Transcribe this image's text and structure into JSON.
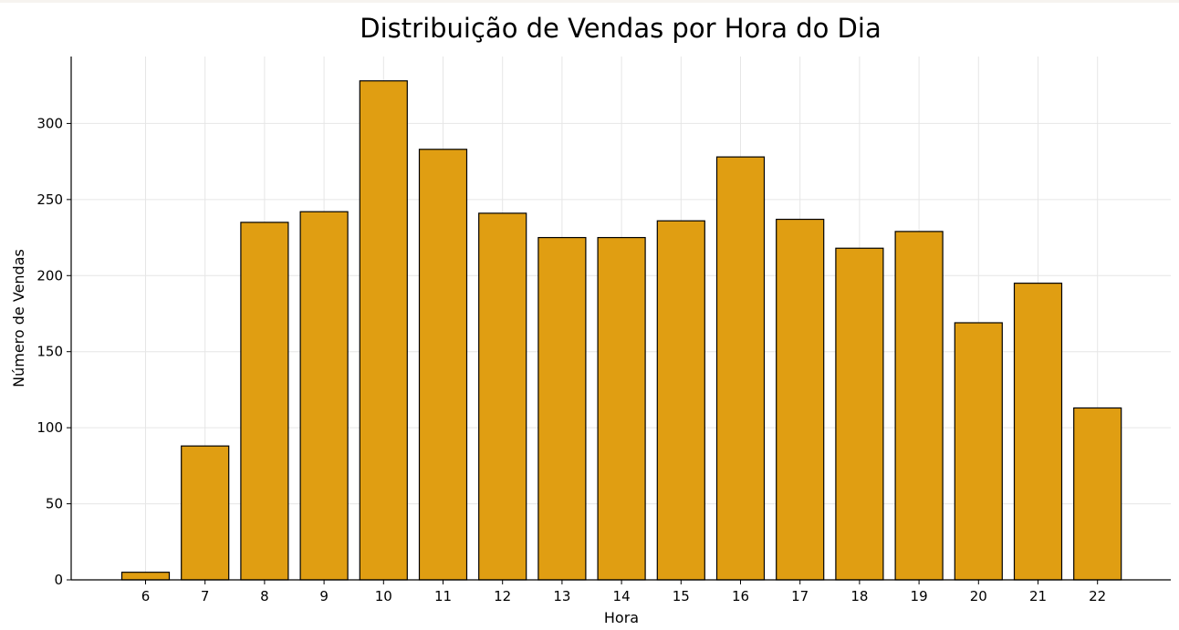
{
  "chart_data": {
    "type": "bar",
    "title": "Distribuição de Vendas por Hora do Dia",
    "xlabel": "Hora",
    "ylabel": "Número de Vendas",
    "categories": [
      "6",
      "7",
      "8",
      "9",
      "10",
      "11",
      "12",
      "13",
      "14",
      "15",
      "16",
      "17",
      "18",
      "19",
      "20",
      "21",
      "22"
    ],
    "values": [
      5,
      88,
      235,
      242,
      328,
      283,
      241,
      225,
      225,
      236,
      278,
      237,
      218,
      229,
      169,
      195,
      113
    ],
    "yticks": [
      "0",
      "50",
      "100",
      "150",
      "200",
      "250",
      "300"
    ],
    "ylim": [
      0,
      344
    ],
    "grid": true,
    "legend": "none",
    "colors": {
      "bar_fill": "#e09e12",
      "bar_edge": "#000000",
      "grid": "#e6e6e6",
      "axis": "#000000"
    }
  }
}
